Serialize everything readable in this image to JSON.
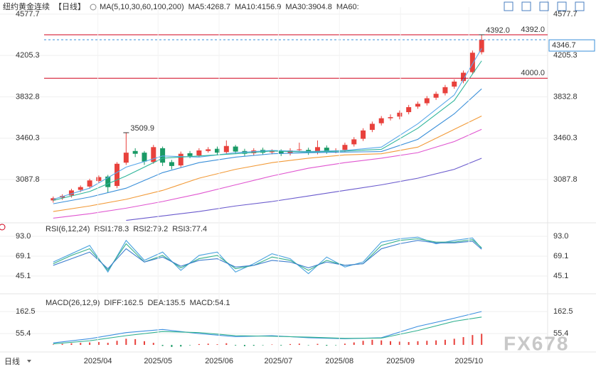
{
  "chart_data": [
    {
      "type": "candlestick",
      "title": "纽约黄金连续",
      "subtitle": "【日线】",
      "legend_title": "MA(5,10,30,60,100,200)",
      "xlim": [
        -1,
        48
      ],
      "ylim": [
        2711,
        4641
      ],
      "grid": true,
      "yticks": [
        4577.7,
        4205.3,
        3832.8,
        3460.3,
        3087.8
      ],
      "up_color": "#e8413c",
      "down_color": "#1a9a66",
      "open": [
        2900,
        2925,
        2945,
        2995,
        3025,
        3075,
        3115,
        3030,
        3240,
        3345,
        3330,
        3245,
        3370,
        3245,
        3215,
        3325,
        3305,
        3345,
        3365,
        3335,
        3385,
        3345,
        3325,
        3355,
        3335,
        3345,
        3325,
        3355,
        3355,
        3335,
        3375,
        3345,
        3355,
        3405,
        3455,
        3535,
        3595,
        3640,
        3655,
        3695,
        3745,
        3775,
        3825,
        3865,
        3925,
        3975,
        4055,
        4235
      ],
      "high": [
        2935,
        2955,
        3005,
        3035,
        3095,
        3125,
        3130,
        3245,
        3509.9,
        3370,
        3345,
        3400,
        3385,
        3265,
        3340,
        3345,
        3370,
        3380,
        3385,
        3440,
        3400,
        3365,
        3370,
        3375,
        3360,
        3360,
        3370,
        3420,
        3375,
        3440,
        3395,
        3370,
        3420,
        3470,
        3550,
        3610,
        3660,
        3675,
        3710,
        3760,
        3790,
        3840,
        3880,
        3940,
        3990,
        4070,
        4250,
        4392
      ],
      "low": [
        2880,
        2905,
        2925,
        2975,
        3005,
        3055,
        2970,
        3010,
        3220,
        3290,
        3220,
        3230,
        3210,
        3180,
        3200,
        3280,
        3290,
        3330,
        3310,
        3320,
        3320,
        3300,
        3305,
        3310,
        3315,
        3300,
        3305,
        3335,
        3310,
        3315,
        3320,
        3325,
        3335,
        3385,
        3435,
        3515,
        3575,
        3620,
        3630,
        3675,
        3725,
        3755,
        3805,
        3845,
        3905,
        3955,
        4035,
        4215
      ],
      "close": [
        2920,
        2940,
        2990,
        3020,
        3080,
        3110,
        3020,
        3230,
        3330,
        3320,
        3250,
        3380,
        3240,
        3210,
        3320,
        3300,
        3350,
        3360,
        3330,
        3390,
        3340,
        3320,
        3350,
        3330,
        3340,
        3320,
        3350,
        3360,
        3330,
        3380,
        3340,
        3350,
        3400,
        3450,
        3530,
        3590,
        3640,
        3650,
        3690,
        3740,
        3770,
        3820,
        3860,
        3920,
        3970,
        4050,
        4230,
        4346.7
      ],
      "series": [
        {
          "name": "MA5:4268.7",
          "color": "#5aa8ea",
          "x": [
            0,
            4,
            8,
            12,
            16,
            20,
            24,
            28,
            32,
            36,
            40,
            44,
            47
          ],
          "values": [
            2910,
            3010,
            3200,
            3300,
            3290,
            3330,
            3350,
            3340,
            3350,
            3380,
            3590,
            3850,
            4268.7
          ]
        },
        {
          "name": "MA10:4156.9",
          "color": "#2fb59a",
          "x": [
            0,
            4,
            8,
            12,
            16,
            20,
            24,
            28,
            32,
            36,
            40,
            44,
            47
          ],
          "values": [
            2900,
            2980,
            3120,
            3280,
            3300,
            3320,
            3345,
            3335,
            3345,
            3360,
            3550,
            3800,
            4156.9
          ]
        },
        {
          "name": "MA30:3904.8",
          "color": "#3a8fd9",
          "x": [
            0,
            4,
            8,
            12,
            16,
            20,
            24,
            28,
            32,
            36,
            40,
            44,
            47
          ],
          "values": [
            2870,
            2930,
            3010,
            3150,
            3240,
            3290,
            3320,
            3330,
            3335,
            3340,
            3450,
            3680,
            3904.8
          ]
        },
        {
          "name": "MA60:",
          "color": "#f29a38",
          "x": [
            0,
            4,
            8,
            12,
            16,
            20,
            24,
            28,
            32,
            36,
            40,
            44,
            47
          ],
          "values": [
            2800,
            2850,
            2910,
            2990,
            3100,
            3180,
            3240,
            3280,
            3310,
            3320,
            3380,
            3540,
            3660
          ]
        },
        {
          "color": "#e055d0",
          "x": [
            0,
            4,
            8,
            12,
            16,
            20,
            24,
            28,
            32,
            36,
            40,
            44,
            47
          ],
          "values": [
            2740,
            2780,
            2830,
            2890,
            2960,
            3040,
            3120,
            3190,
            3240,
            3280,
            3330,
            3430,
            3540
          ]
        },
        {
          "color": "#6a5acd",
          "x": [
            0,
            4,
            8,
            12,
            16,
            20,
            24,
            28,
            32,
            36,
            40,
            44,
            47
          ],
          "values": [
            null,
            null,
            2720,
            2760,
            2800,
            2850,
            2890,
            2940,
            2990,
            3040,
            3100,
            3180,
            3280
          ]
        }
      ],
      "hlines": [
        {
          "value": 4392,
          "label": "4392.0",
          "color": "#d0021b"
        },
        {
          "value": 4000,
          "label": "4000.0",
          "color": "#d0021b"
        }
      ],
      "last_price": {
        "value": 4346.7,
        "color": "#3a8fd9"
      },
      "annotations": [
        {
          "x": 8,
          "value": 3509.9,
          "label": "3509.9"
        },
        {
          "x": 47,
          "value": 4392,
          "label": "4392.0"
        }
      ]
    },
    {
      "type": "line",
      "title": "RSI(6,12,24)",
      "xlim": [
        -1,
        48
      ],
      "ylim": [
        27.2,
        105.8
      ],
      "grid": true,
      "yticks": [
        {
          "value": 93,
          "label": "93.0"
        },
        69.1,
        45.1
      ],
      "series": [
        {
          "name": "RSI1:78.3",
          "color": "#4aa3df",
          "x": [
            0,
            2,
            4,
            6,
            8,
            10,
            12,
            14,
            16,
            18,
            20,
            22,
            24,
            26,
            28,
            30,
            32,
            34,
            36,
            38,
            40,
            42,
            44,
            46,
            47
          ],
          "values": [
            62,
            72,
            82,
            50,
            88,
            64,
            74,
            52,
            70,
            74,
            50,
            60,
            72,
            66,
            48,
            68,
            56,
            62,
            86,
            90,
            92,
            84,
            88,
            91,
            78.3
          ]
        },
        {
          "name": "RSI2:79.2",
          "color": "#36b08a",
          "x": [
            0,
            2,
            4,
            6,
            8,
            10,
            12,
            14,
            16,
            18,
            20,
            22,
            24,
            26,
            28,
            30,
            32,
            34,
            36,
            38,
            40,
            42,
            44,
            46,
            47
          ],
          "values": [
            60,
            70,
            78,
            52,
            84,
            62,
            70,
            55,
            66,
            70,
            54,
            58,
            68,
            64,
            52,
            64,
            58,
            60,
            82,
            88,
            90,
            86,
            86,
            89,
            79.2
          ]
        },
        {
          "name": "RSI3:77.4",
          "color": "#3f7fd0",
          "x": [
            0,
            2,
            4,
            6,
            8,
            10,
            12,
            14,
            16,
            18,
            20,
            22,
            24,
            26,
            28,
            30,
            32,
            34,
            36,
            38,
            40,
            42,
            44,
            46,
            47
          ],
          "values": [
            58,
            66,
            74,
            54,
            78,
            62,
            68,
            57,
            64,
            66,
            56,
            58,
            64,
            62,
            55,
            62,
            58,
            60,
            78,
            84,
            88,
            85,
            85,
            87,
            77.4
          ]
        }
      ]
    },
    {
      "type": "macd",
      "title": "MACD(26,12,9)",
      "xlim": [
        -1,
        48
      ],
      "ylim": [
        -20.6,
        228.1
      ],
      "grid": true,
      "yticks": [
        162.5,
        55.4
      ],
      "series": [
        {
          "name": "DIFF:162.5",
          "color": "#3b8fe0",
          "x": [
            0,
            4,
            8,
            12,
            16,
            20,
            24,
            28,
            32,
            36,
            40,
            44,
            47
          ],
          "values": [
            10,
            30,
            60,
            75,
            55,
            40,
            45,
            35,
            30,
            35,
            90,
            130,
            162.5
          ]
        },
        {
          "name": "DEA:135.5",
          "color": "#2fb08e",
          "x": [
            0,
            4,
            8,
            12,
            16,
            20,
            24,
            28,
            32,
            36,
            40,
            44,
            47
          ],
          "values": [
            5,
            20,
            45,
            65,
            60,
            45,
            42,
            38,
            32,
            33,
            70,
            115,
            135.5
          ]
        }
      ],
      "bars": {
        "name": "MACD:54.1",
        "up_color": "#e8413c",
        "down_color": "#1a9a66",
        "values": [
          2,
          5,
          8,
          10,
          12,
          14,
          10,
          20,
          30,
          28,
          18,
          10,
          -5,
          -10,
          -8,
          -2,
          4,
          6,
          3,
          8,
          -3,
          -6,
          -4,
          -2,
          2,
          -3,
          4,
          6,
          -2,
          5,
          -4,
          -2,
          6,
          12,
          20,
          25,
          22,
          18,
          16,
          14,
          18,
          20,
          22,
          25,
          30,
          38,
          48,
          54.1
        ]
      },
      "xticks": [
        {
          "value": 4.9,
          "label": "2025/04"
        },
        {
          "value": 11.5,
          "label": "2025/05"
        },
        {
          "value": 18.2,
          "label": "2025/06"
        },
        {
          "value": 24.7,
          "label": "2025/07"
        },
        {
          "value": 31.4,
          "label": "2025/08"
        },
        {
          "value": 38.1,
          "label": "2025/09"
        },
        {
          "value": 45.6,
          "label": "2025/10"
        }
      ]
    }
  ],
  "period": "日线",
  "watermark": "FX678"
}
